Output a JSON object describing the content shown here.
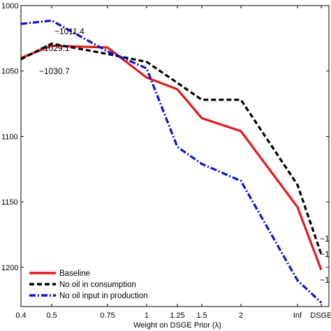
{
  "chart_data": {
    "type": "line",
    "xlabel": "Weight on DSGE Prior (λ)",
    "ylabel": "",
    "x_categories": [
      "0.4",
      "0.5",
      "0.75",
      "1",
      "1.25",
      "1.5",
      "2",
      "Inf",
      "DSGE"
    ],
    "y_axis": {
      "reversed": true,
      "ylim": [
        1000,
        1230
      ],
      "ticks": [
        1000,
        1050,
        1100,
        1150,
        1200
      ]
    },
    "grid": false,
    "legend_position": "bottom-left",
    "series": [
      {
        "name": "Baseline",
        "color": "#e31a1c",
        "style": "solid",
        "values": [
          1040,
          1030.7,
          1032,
          1055,
          1064,
          1086,
          1096,
          1154,
          1202
        ]
      },
      {
        "name": "No oil in consumption",
        "color": "#000000",
        "style": "dashed",
        "values": [
          1041,
          1029.1,
          1037,
          1043,
          1059,
          1072,
          1072,
          1137,
          1190
        ]
      },
      {
        "name": "No oil input in production",
        "color": "#1010d0",
        "style": "dashdot",
        "values": [
          1014,
          1011.4,
          1035,
          1048,
          1108,
          1121,
          1134,
          1210,
          1227
        ]
      }
    ],
    "annotations": [
      "−1011.4",
      "−1029.1",
      "−1030.7"
    ],
    "right_edge_labels": [
      "−1",
      "−1",
      "−1"
    ]
  }
}
